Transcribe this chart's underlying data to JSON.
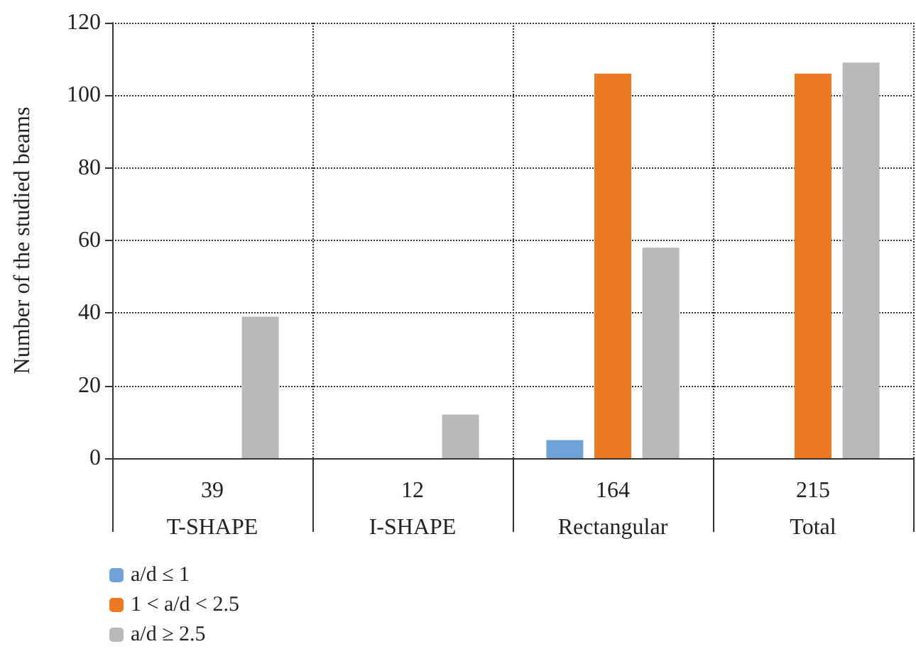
{
  "chart_data": {
    "type": "bar",
    "ylabel": "Number of the studied beams",
    "categories": [
      "39\nT-SHAPE",
      "12\nI-SHAPE",
      "164\nRectangular",
      "215\nTotal"
    ],
    "series": [
      {
        "name": "a/d ≤ 1",
        "color": "#6fa3d8",
        "values": [
          null,
          null,
          5,
          null
        ]
      },
      {
        "name": "1 < a/d < 2.5",
        "color": "#ec7a23",
        "values": [
          null,
          null,
          106,
          106
        ]
      },
      {
        "name": "a/d ≥ 2.5",
        "color": "#b9b9b9",
        "values": [
          39,
          12,
          58,
          109
        ]
      }
    ],
    "ylim": [
      0,
      120
    ],
    "yticks": [
      0,
      20,
      40,
      60,
      80,
      100,
      120
    ],
    "grid": true,
    "legend": "bottom left"
  }
}
